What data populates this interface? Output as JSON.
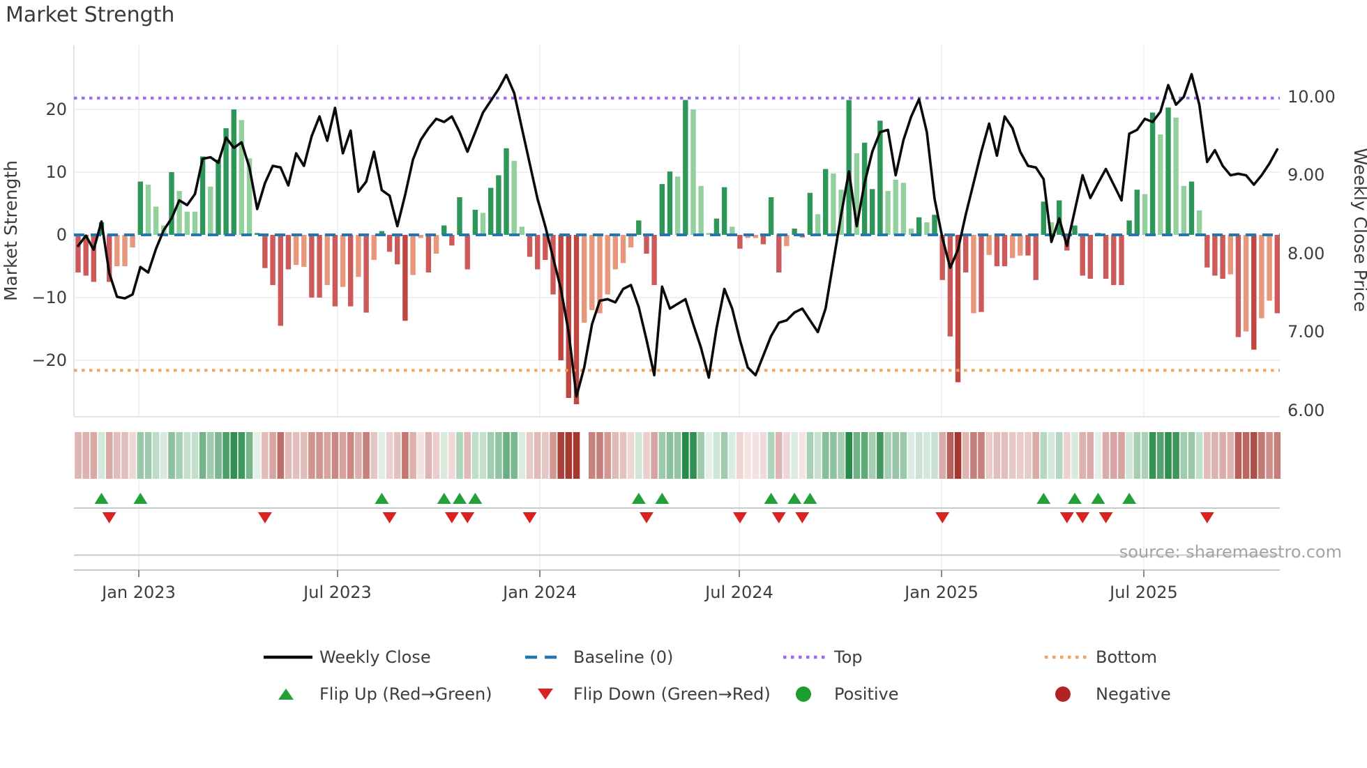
{
  "title": "Market Strength",
  "source_credit": "source: sharemaestro.com",
  "axes": {
    "left": {
      "title": "Market Strength",
      "ticks": [
        "20",
        "10",
        "0",
        "−10",
        "−20"
      ]
    },
    "right": {
      "title": "Weekly Close Price",
      "ticks": [
        "10.00",
        "9.00",
        "8.00",
        "7.00",
        "6.00"
      ]
    },
    "x": {
      "ticks": [
        "Jan 2023",
        "Jul 2023",
        "Jan 2024",
        "Jul 2024",
        "Jan 2025",
        "Jul 2025"
      ]
    }
  },
  "legend": {
    "weekly_close": "Weekly Close",
    "baseline": "Baseline (0)",
    "top": "Top",
    "bottom": "Bottom",
    "flip_up": "Flip Up (Red→Green)",
    "flip_down": "Flip Down (Green→Red)",
    "positive": "Positive",
    "negative": "Negative"
  },
  "colors": {
    "line": "#0a0a0a",
    "baseline": "#1f77b4",
    "top": "#9e68f0",
    "bottom": "#f2a45c",
    "flip_up_marker": "#23a038",
    "flip_down_marker": "#d92323",
    "positive_dot": "#1f9c30",
    "negative_dot": "#b22222",
    "grid": "#ececf2",
    "spine": "#dcdce4",
    "panel_line": "#c9c9c9",
    "tick_text": "#3d3d3d",
    "source_text": "#a3a3a3",
    "shades": {
      "g": "#2e9658",
      "l": "#93d09d",
      "r": "#cd5a5a",
      "s": "#e8977c",
      "d": "#bf4742"
    },
    "heat_pos": [
      40,
      138,
      74
    ],
    "heat_neg": [
      165,
      56,
      48
    ]
  },
  "chart_data": {
    "type": "combo",
    "title": "Market Strength",
    "x_unit": "week",
    "x_tick_labels": [
      "Jan 2023",
      "Jul 2023",
      "Jan 2024",
      "Jul 2024",
      "Jan 2025",
      "Jul 2025"
    ],
    "left_axis": {
      "label": "Market Strength",
      "ticks": [
        20,
        10,
        0,
        -10,
        -20
      ],
      "range": [
        -30,
        30
      ]
    },
    "right_axis": {
      "label": "Weekly Close Price",
      "ticks": [
        10,
        9,
        8,
        7,
        6
      ],
      "range": [
        5.9,
        10.66
      ]
    },
    "baseline": 0,
    "top_threshold": 21.8,
    "bottom_threshold": -21.6,
    "legend_position": "bottom",
    "heatmap_gap_weeks": [
      65
    ],
    "series_note": "weeks = [market_strength_bar, weekly_close_price, bar_shade]; shade g=dark-green l=light-green r=indianred s=salmon d=dark-red; flip markers occur where bar sign changes",
    "weeks": [
      [
        -6.0,
        8.1,
        "r"
      ],
      [
        -6.5,
        8.23,
        "r"
      ],
      [
        -7.5,
        8.05,
        "r"
      ],
      [
        2.0,
        8.41,
        "g"
      ],
      [
        -7.5,
        7.75,
        "r"
      ],
      [
        -5.0,
        7.45,
        "s"
      ],
      [
        -5.0,
        7.43,
        "s"
      ],
      [
        -2.0,
        7.48,
        "s"
      ],
      [
        8.5,
        7.83,
        "g"
      ],
      [
        8.0,
        7.76,
        "l"
      ],
      [
        4.5,
        8.06,
        "l"
      ],
      [
        1.5,
        8.3,
        "l"
      ],
      [
        10.0,
        8.45,
        "g"
      ],
      [
        7.0,
        8.68,
        "l"
      ],
      [
        3.7,
        8.62,
        "l"
      ],
      [
        3.7,
        8.76,
        "l"
      ],
      [
        12.5,
        9.21,
        "g"
      ],
      [
        7.7,
        9.23,
        "l"
      ],
      [
        12.0,
        9.16,
        "g"
      ],
      [
        17.0,
        9.48,
        "g"
      ],
      [
        20.0,
        9.35,
        "g"
      ],
      [
        18.3,
        9.42,
        "l"
      ],
      [
        12.2,
        9.1,
        "l"
      ],
      [
        0.3,
        8.57,
        "g"
      ],
      [
        -5.3,
        8.9,
        "r"
      ],
      [
        -8.0,
        9.12,
        "r"
      ],
      [
        -14.5,
        9.1,
        "r"
      ],
      [
        -5.5,
        8.87,
        "r"
      ],
      [
        -4.8,
        9.28,
        "s"
      ],
      [
        -5.1,
        9.12,
        "s"
      ],
      [
        -10.0,
        9.5,
        "r"
      ],
      [
        -10.0,
        9.75,
        "r"
      ],
      [
        -8.0,
        9.44,
        "s"
      ],
      [
        -11.4,
        9.86,
        "r"
      ],
      [
        -8.3,
        9.28,
        "s"
      ],
      [
        -11.4,
        9.57,
        "r"
      ],
      [
        -6.7,
        8.79,
        "s"
      ],
      [
        -12.4,
        8.92,
        "r"
      ],
      [
        -4.0,
        9.3,
        "s"
      ],
      [
        0.6,
        8.81,
        "g"
      ],
      [
        -2.7,
        8.74,
        "r"
      ],
      [
        -4.7,
        8.35,
        "r"
      ],
      [
        -13.7,
        8.75,
        "d"
      ],
      [
        -6.4,
        9.2,
        "s"
      ],
      [
        -0.5,
        9.45,
        "s"
      ],
      [
        -6.0,
        9.6,
        "r"
      ],
      [
        -3.0,
        9.72,
        "s"
      ],
      [
        1.5,
        9.68,
        "g"
      ],
      [
        -1.7,
        9.75,
        "r"
      ],
      [
        6.0,
        9.55,
        "g"
      ],
      [
        -5.5,
        9.3,
        "r"
      ],
      [
        4.0,
        9.55,
        "g"
      ],
      [
        3.5,
        9.8,
        "l"
      ],
      [
        7.5,
        9.95,
        "g"
      ],
      [
        9.5,
        10.1,
        "g"
      ],
      [
        13.8,
        10.28,
        "g"
      ],
      [
        11.8,
        10.05,
        "l"
      ],
      [
        1.3,
        9.6,
        "l"
      ],
      [
        -3.5,
        9.15,
        "r"
      ],
      [
        -5.5,
        8.7,
        "r"
      ],
      [
        -4.0,
        8.35,
        "r"
      ],
      [
        -9.5,
        7.95,
        "r"
      ],
      [
        -20.0,
        7.55,
        "d"
      ],
      [
        -26.0,
        7.0,
        "d"
      ],
      [
        -27.0,
        6.18,
        "d"
      ],
      [
        -14.0,
        6.55,
        "s"
      ],
      [
        -12.0,
        7.1,
        "s"
      ],
      [
        -12.5,
        7.4,
        "s"
      ],
      [
        -9.5,
        7.42,
        "s"
      ],
      [
        -5.5,
        7.38,
        "s"
      ],
      [
        -4.5,
        7.55,
        "s"
      ],
      [
        -2.0,
        7.6,
        "s"
      ],
      [
        2.3,
        7.32,
        "g"
      ],
      [
        -3.0,
        6.9,
        "r"
      ],
      [
        -8.0,
        6.45,
        "r"
      ],
      [
        8.1,
        7.58,
        "g"
      ],
      [
        10.1,
        7.3,
        "g"
      ],
      [
        9.3,
        7.36,
        "l"
      ],
      [
        21.5,
        7.42,
        "g"
      ],
      [
        20.0,
        7.1,
        "l"
      ],
      [
        7.8,
        6.8,
        "l"
      ],
      [
        0.3,
        6.42,
        "l"
      ],
      [
        2.6,
        7.05,
        "g"
      ],
      [
        7.6,
        7.55,
        "g"
      ],
      [
        1.3,
        7.3,
        "l"
      ],
      [
        -2.2,
        6.9,
        "r"
      ],
      [
        -0.5,
        6.55,
        "s"
      ],
      [
        -0.5,
        6.45,
        "s"
      ],
      [
        -1.5,
        6.7,
        "r"
      ],
      [
        6.0,
        6.95,
        "g"
      ],
      [
        -6.0,
        7.12,
        "r"
      ],
      [
        -1.8,
        7.15,
        "s"
      ],
      [
        1.0,
        7.25,
        "g"
      ],
      [
        -0.4,
        7.3,
        "r"
      ],
      [
        6.7,
        7.15,
        "g"
      ],
      [
        3.3,
        7.0,
        "l"
      ],
      [
        10.5,
        7.3,
        "g"
      ],
      [
        9.8,
        7.9,
        "l"
      ],
      [
        7.2,
        8.5,
        "l"
      ],
      [
        21.5,
        9.05,
        "g"
      ],
      [
        13.0,
        8.35,
        "l"
      ],
      [
        14.7,
        8.9,
        "g"
      ],
      [
        7.3,
        9.3,
        "g"
      ],
      [
        18.2,
        9.55,
        "g"
      ],
      [
        7.0,
        9.58,
        "l"
      ],
      [
        8.8,
        9.0,
        "l"
      ],
      [
        8.3,
        9.45,
        "l"
      ],
      [
        1.0,
        9.75,
        "l"
      ],
      [
        2.8,
        9.97,
        "g"
      ],
      [
        2.0,
        9.55,
        "l"
      ],
      [
        3.2,
        8.7,
        "g"
      ],
      [
        -7.2,
        8.2,
        "r"
      ],
      [
        -16.2,
        7.82,
        "r"
      ],
      [
        -23.5,
        8.05,
        "d"
      ],
      [
        -6.0,
        8.5,
        "r"
      ],
      [
        -12.5,
        8.9,
        "s"
      ],
      [
        -12.3,
        9.3,
        "r"
      ],
      [
        -3.2,
        9.66,
        "s"
      ],
      [
        -5.0,
        9.25,
        "r"
      ],
      [
        -5.0,
        9.75,
        "r"
      ],
      [
        -3.7,
        9.6,
        "s"
      ],
      [
        -3.3,
        9.3,
        "s"
      ],
      [
        -3.3,
        9.12,
        "r"
      ],
      [
        -7.2,
        9.1,
        "r"
      ],
      [
        5.3,
        8.95,
        "g"
      ],
      [
        2.0,
        8.15,
        "l"
      ],
      [
        5.5,
        8.45,
        "g"
      ],
      [
        -2.5,
        8.1,
        "r"
      ],
      [
        1.5,
        8.55,
        "g"
      ],
      [
        -6.5,
        9.0,
        "r"
      ],
      [
        -7.0,
        8.71,
        "r"
      ],
      [
        0.3,
        8.9,
        "g"
      ],
      [
        -7.0,
        9.08,
        "r"
      ],
      [
        -8.0,
        8.88,
        "r"
      ],
      [
        -8.0,
        8.68,
        "r"
      ],
      [
        2.3,
        9.53,
        "g"
      ],
      [
        7.2,
        9.58,
        "g"
      ],
      [
        6.5,
        9.72,
        "l"
      ],
      [
        19.5,
        9.68,
        "g"
      ],
      [
        16.0,
        9.81,
        "l"
      ],
      [
        20.3,
        10.15,
        "g"
      ],
      [
        18.7,
        9.9,
        "l"
      ],
      [
        7.8,
        10.0,
        "l"
      ],
      [
        8.5,
        10.29,
        "g"
      ],
      [
        3.9,
        9.9,
        "l"
      ],
      [
        -5.2,
        9.17,
        "r"
      ],
      [
        -6.5,
        9.32,
        "r"
      ],
      [
        -7.0,
        9.12,
        "r"
      ],
      [
        -6.3,
        9.0,
        "s"
      ],
      [
        -16.3,
        9.02,
        "r"
      ],
      [
        -15.4,
        9.0,
        "s"
      ],
      [
        -18.3,
        8.88,
        "d"
      ],
      [
        -13.3,
        9.0,
        "s"
      ],
      [
        -10.5,
        9.15,
        "s"
      ],
      [
        -12.5,
        9.33,
        "r"
      ]
    ]
  }
}
